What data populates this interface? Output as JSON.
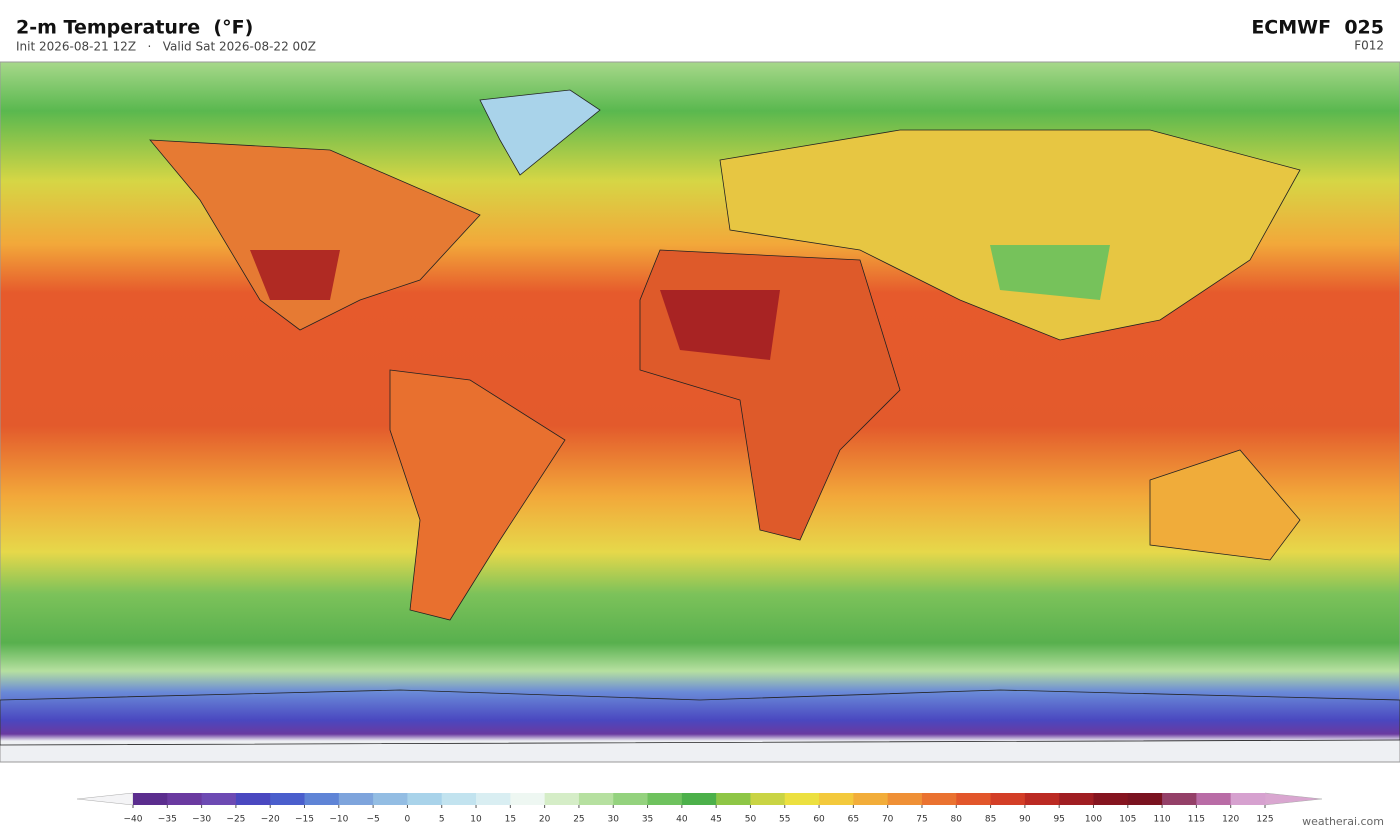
{
  "header": {
    "title": "2-m Temperature  (°F)",
    "subtitle": "Init 2026-08-21 12Z   ·   Valid Sat 2026-08-22 00Z",
    "model": "ECMWF  025",
    "forecast_hour": "F012"
  },
  "colorbar": {
    "ticks": [
      {
        "value": -40,
        "label": "−40"
      },
      {
        "value": -35,
        "label": "−35"
      },
      {
        "value": -30,
        "label": "−30"
      },
      {
        "value": -25,
        "label": "−25"
      },
      {
        "value": -20,
        "label": "−20"
      },
      {
        "value": -15,
        "label": "−15"
      },
      {
        "value": -10,
        "label": "−10"
      },
      {
        "value": -5,
        "label": "−5"
      },
      0,
      5,
      10,
      15,
      20,
      25,
      30,
      35,
      40,
      45,
      50,
      55,
      60,
      65,
      70,
      75,
      80,
      85,
      90,
      95,
      100,
      105,
      110,
      115,
      120,
      125
    ],
    "colors": [
      "#5b2d8e",
      "#6a3aa0",
      "#6d4ab3",
      "#4a48c0",
      "#4a5ecc",
      "#5f84d6",
      "#7ea4dc",
      "#93bde3",
      "#a9d3ea",
      "#c2e3ef",
      "#d9eef2",
      "#eef7f2",
      "#d5edc7",
      "#b6e0a0",
      "#94d27e",
      "#6fc25e",
      "#4cb04a",
      "#8ec646",
      "#c9d444",
      "#ece040",
      "#f3c93c",
      "#f2ad3a",
      "#ef9036",
      "#ea7230",
      "#e2562b",
      "#d33e27",
      "#bb2a23",
      "#a01e22",
      "#85141f",
      "#7a1320",
      "#944068",
      "#b96ca6",
      "#d6a1cf"
    ],
    "under_color": "#f4f4f6",
    "over_color": "#d9a6d0"
  },
  "footer": {
    "credit": "weatherai.com"
  }
}
